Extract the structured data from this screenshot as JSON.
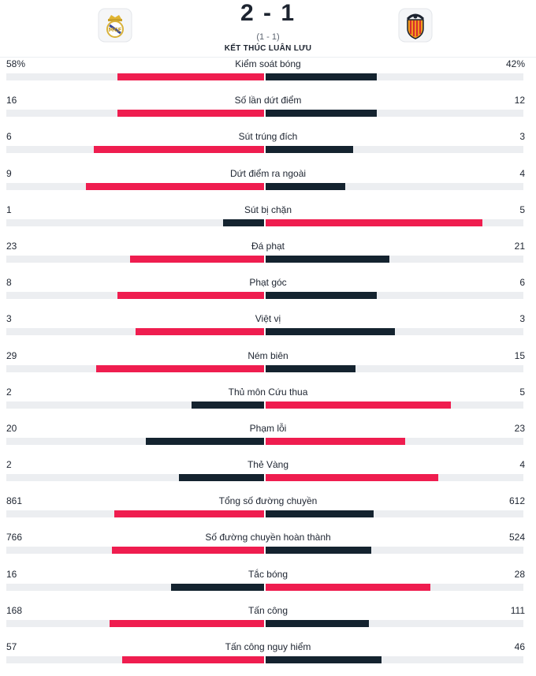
{
  "match": {
    "score": "2 - 1",
    "aggregate": "(1 - 1)",
    "status": "KẾT THÚC LUÂN LƯU",
    "home_logo": "real-madrid-crest",
    "away_logo": "valencia-crest"
  },
  "colors": {
    "leader": "#ef1d4f",
    "trailer": "#14232f",
    "track": "#eceef1"
  },
  "stats": [
    {
      "label": "Kiểm soát bóng",
      "home": "58%",
      "away": "42%",
      "home_fill": 0.57,
      "away_fill": 0.43
    },
    {
      "label": "Số lần dứt điểm",
      "home": "16",
      "away": "12",
      "home_fill": 0.57,
      "away_fill": 0.43
    },
    {
      "label": "Sút trúng đích",
      "home": "6",
      "away": "3",
      "home_fill": 0.66,
      "away_fill": 0.34
    },
    {
      "label": "Dứt điểm ra ngoài",
      "home": "9",
      "away": "4",
      "home_fill": 0.69,
      "away_fill": 0.31
    },
    {
      "label": "Sút bị chặn",
      "home": "1",
      "away": "5",
      "home_fill": 0.16,
      "away_fill": 0.84
    },
    {
      "label": "Đá phạt",
      "home": "23",
      "away": "21",
      "home_fill": 0.52,
      "away_fill": 0.48
    },
    {
      "label": "Phạt góc",
      "home": "8",
      "away": "6",
      "home_fill": 0.57,
      "away_fill": 0.43
    },
    {
      "label": "Việt vị",
      "home": "3",
      "away": "3",
      "home_fill": 0.5,
      "away_fill": 0.5
    },
    {
      "label": "Ném biên",
      "home": "29",
      "away": "15",
      "home_fill": 0.65,
      "away_fill": 0.35
    },
    {
      "label": "Thủ môn Cứu thua",
      "home": "2",
      "away": "5",
      "home_fill": 0.28,
      "away_fill": 0.72
    },
    {
      "label": "Phạm lỗi",
      "home": "20",
      "away": "23",
      "home_fill": 0.46,
      "away_fill": 0.54
    },
    {
      "label": "Thẻ Vàng",
      "home": "2",
      "away": "4",
      "home_fill": 0.33,
      "away_fill": 0.67
    },
    {
      "label": "Tổng số đường chuyền",
      "home": "861",
      "away": "612",
      "home_fill": 0.58,
      "away_fill": 0.42
    },
    {
      "label": "Số đường chuyền hoàn thành",
      "home": "766",
      "away": "524",
      "home_fill": 0.59,
      "away_fill": 0.41
    },
    {
      "label": "Tắc bóng",
      "home": "16",
      "away": "28",
      "home_fill": 0.36,
      "away_fill": 0.64
    },
    {
      "label": "Tấn công",
      "home": "168",
      "away": "111",
      "home_fill": 0.6,
      "away_fill": 0.4
    },
    {
      "label": "Tấn công nguy hiểm",
      "home": "57",
      "away": "46",
      "home_fill": 0.55,
      "away_fill": 0.45
    }
  ]
}
